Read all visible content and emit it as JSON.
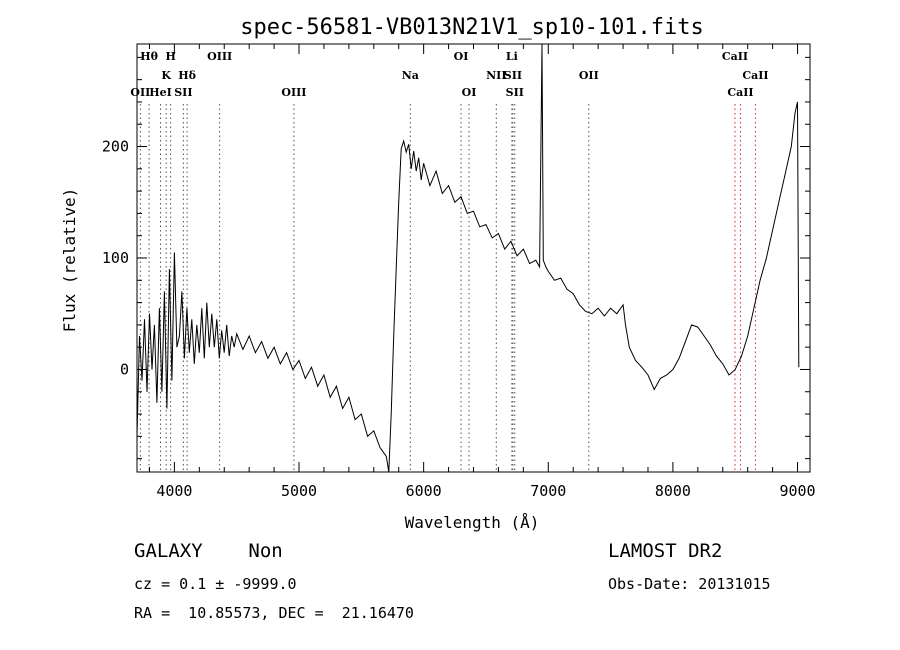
{
  "chart_data": {
    "type": "line",
    "title": "spec-56581-VB013N21V1_sp10-101.fits",
    "xlabel": "Wavelength (Å)",
    "ylabel": "Flux (relative)",
    "xlim": [
      3700,
      9100
    ],
    "ylim": [
      -92,
      292
    ],
    "xticks": [
      4000,
      5000,
      6000,
      7000,
      8000,
      9000
    ],
    "yticks": [
      0,
      100,
      200
    ],
    "grid": false,
    "legend": "none",
    "series": [
      {
        "color": "#000000",
        "points": [
          [
            3700,
            -60
          ],
          [
            3720,
            30
          ],
          [
            3740,
            -10
          ],
          [
            3760,
            45
          ],
          [
            3780,
            -20
          ],
          [
            3800,
            50
          ],
          [
            3820,
            0
          ],
          [
            3840,
            40
          ],
          [
            3860,
            -30
          ],
          [
            3880,
            55
          ],
          [
            3900,
            -20
          ],
          [
            3920,
            70
          ],
          [
            3940,
            -35
          ],
          [
            3960,
            90
          ],
          [
            3980,
            -10
          ],
          [
            4000,
            105
          ],
          [
            4020,
            20
          ],
          [
            4040,
            30
          ],
          [
            4060,
            70
          ],
          [
            4080,
            10
          ],
          [
            4100,
            55
          ],
          [
            4120,
            15
          ],
          [
            4140,
            45
          ],
          [
            4160,
            5
          ],
          [
            4180,
            40
          ],
          [
            4200,
            15
          ],
          [
            4220,
            55
          ],
          [
            4240,
            10
          ],
          [
            4260,
            60
          ],
          [
            4280,
            20
          ],
          [
            4300,
            50
          ],
          [
            4320,
            20
          ],
          [
            4340,
            45
          ],
          [
            4360,
            10
          ],
          [
            4380,
            35
          ],
          [
            4400,
            15
          ],
          [
            4420,
            40
          ],
          [
            4440,
            12
          ],
          [
            4460,
            30
          ],
          [
            4480,
            20
          ],
          [
            4500,
            32
          ],
          [
            4550,
            18
          ],
          [
            4600,
            30
          ],
          [
            4650,
            15
          ],
          [
            4700,
            25
          ],
          [
            4750,
            10
          ],
          [
            4800,
            20
          ],
          [
            4850,
            5
          ],
          [
            4900,
            15
          ],
          [
            4950,
            0
          ],
          [
            5000,
            8
          ],
          [
            5050,
            -8
          ],
          [
            5100,
            2
          ],
          [
            5150,
            -15
          ],
          [
            5200,
            -5
          ],
          [
            5250,
            -25
          ],
          [
            5300,
            -15
          ],
          [
            5350,
            -35
          ],
          [
            5400,
            -25
          ],
          [
            5450,
            -45
          ],
          [
            5500,
            -40
          ],
          [
            5550,
            -60
          ],
          [
            5600,
            -55
          ],
          [
            5650,
            -70
          ],
          [
            5700,
            -78
          ],
          [
            5720,
            -92
          ],
          [
            5740,
            -40
          ],
          [
            5760,
            30
          ],
          [
            5780,
            90
          ],
          [
            5800,
            150
          ],
          [
            5820,
            198
          ],
          [
            5840,
            205
          ],
          [
            5860,
            195
          ],
          [
            5880,
            202
          ],
          [
            5900,
            180
          ],
          [
            5920,
            196
          ],
          [
            5940,
            178
          ],
          [
            5960,
            190
          ],
          [
            5980,
            170
          ],
          [
            6000,
            185
          ],
          [
            6050,
            165
          ],
          [
            6100,
            178
          ],
          [
            6150,
            158
          ],
          [
            6200,
            165
          ],
          [
            6250,
            150
          ],
          [
            6300,
            155
          ],
          [
            6350,
            140
          ],
          [
            6400,
            142
          ],
          [
            6450,
            128
          ],
          [
            6500,
            130
          ],
          [
            6550,
            118
          ],
          [
            6600,
            122
          ],
          [
            6650,
            108
          ],
          [
            6700,
            115
          ],
          [
            6750,
            102
          ],
          [
            6800,
            108
          ],
          [
            6850,
            95
          ],
          [
            6900,
            98
          ],
          [
            6930,
            92
          ],
          [
            6950,
            292
          ],
          [
            6960,
            98
          ],
          [
            6980,
            92
          ],
          [
            7000,
            88
          ],
          [
            7050,
            80
          ],
          [
            7100,
            82
          ],
          [
            7150,
            72
          ],
          [
            7200,
            68
          ],
          [
            7250,
            58
          ],
          [
            7300,
            52
          ],
          [
            7350,
            50
          ],
          [
            7400,
            55
          ],
          [
            7450,
            48
          ],
          [
            7500,
            55
          ],
          [
            7550,
            50
          ],
          [
            7600,
            58
          ],
          [
            7620,
            40
          ],
          [
            7650,
            20
          ],
          [
            7700,
            8
          ],
          [
            7750,
            2
          ],
          [
            7800,
            -5
          ],
          [
            7850,
            -18
          ],
          [
            7900,
            -8
          ],
          [
            7950,
            -5
          ],
          [
            8000,
            0
          ],
          [
            8050,
            10
          ],
          [
            8100,
            25
          ],
          [
            8150,
            40
          ],
          [
            8200,
            38
          ],
          [
            8250,
            30
          ],
          [
            8300,
            22
          ],
          [
            8350,
            12
          ],
          [
            8400,
            5
          ],
          [
            8450,
            -5
          ],
          [
            8500,
            0
          ],
          [
            8550,
            12
          ],
          [
            8600,
            30
          ],
          [
            8650,
            55
          ],
          [
            8700,
            80
          ],
          [
            8750,
            100
          ],
          [
            8800,
            125
          ],
          [
            8850,
            150
          ],
          [
            8900,
            175
          ],
          [
            8950,
            200
          ],
          [
            8980,
            230
          ],
          [
            9000,
            240
          ],
          [
            9010,
            2
          ]
        ]
      }
    ],
    "line_markers": [
      {
        "label": "Hθ",
        "x": 3797,
        "row": 0
      },
      {
        "label": "H",
        "x": 3970,
        "row": 0
      },
      {
        "label": "OIII",
        "x": 4363,
        "row": 0
      },
      {
        "label": "OI",
        "x": 6300,
        "row": 0
      },
      {
        "label": "Li",
        "x": 6708,
        "row": 0
      },
      {
        "label": "CaII",
        "x": 8498,
        "row": 0
      },
      {
        "label": "K",
        "x": 3934,
        "row": 1
      },
      {
        "label": "Hδ",
        "x": 4102,
        "row": 1
      },
      {
        "label": "Na",
        "x": 5893,
        "row": 1
      },
      {
        "label": "NII",
        "x": 6583,
        "row": 1
      },
      {
        "label": "SII",
        "x": 6716,
        "row": 1
      },
      {
        "label": "OII",
        "x": 7325,
        "row": 1
      },
      {
        "label": "CaII",
        "x": 8662,
        "row": 1
      },
      {
        "label": "OII",
        "x": 3727,
        "row": 2
      },
      {
        "label": "HeI",
        "x": 3889,
        "row": 2
      },
      {
        "label": "SII",
        "x": 4072,
        "row": 2
      },
      {
        "label": "OIII",
        "x": 4959,
        "row": 2
      },
      {
        "label": "OI",
        "x": 6364,
        "row": 2
      },
      {
        "label": "SII",
        "x": 6731,
        "row": 2
      },
      {
        "label": "CaII",
        "x": 8542,
        "row": 2
      }
    ],
    "marker_line_colors": {
      "black": "#555555",
      "red": "#d62a2a"
    }
  },
  "info": {
    "class_line": "GALAXY    Non",
    "cz_line": "cz = 0.1 ± -9999.0",
    "radec_line": "RA =  10.85573, DEC =  21.16470",
    "survey": "LAMOST DR2",
    "obs_date": "Obs-Date: 20131015"
  }
}
